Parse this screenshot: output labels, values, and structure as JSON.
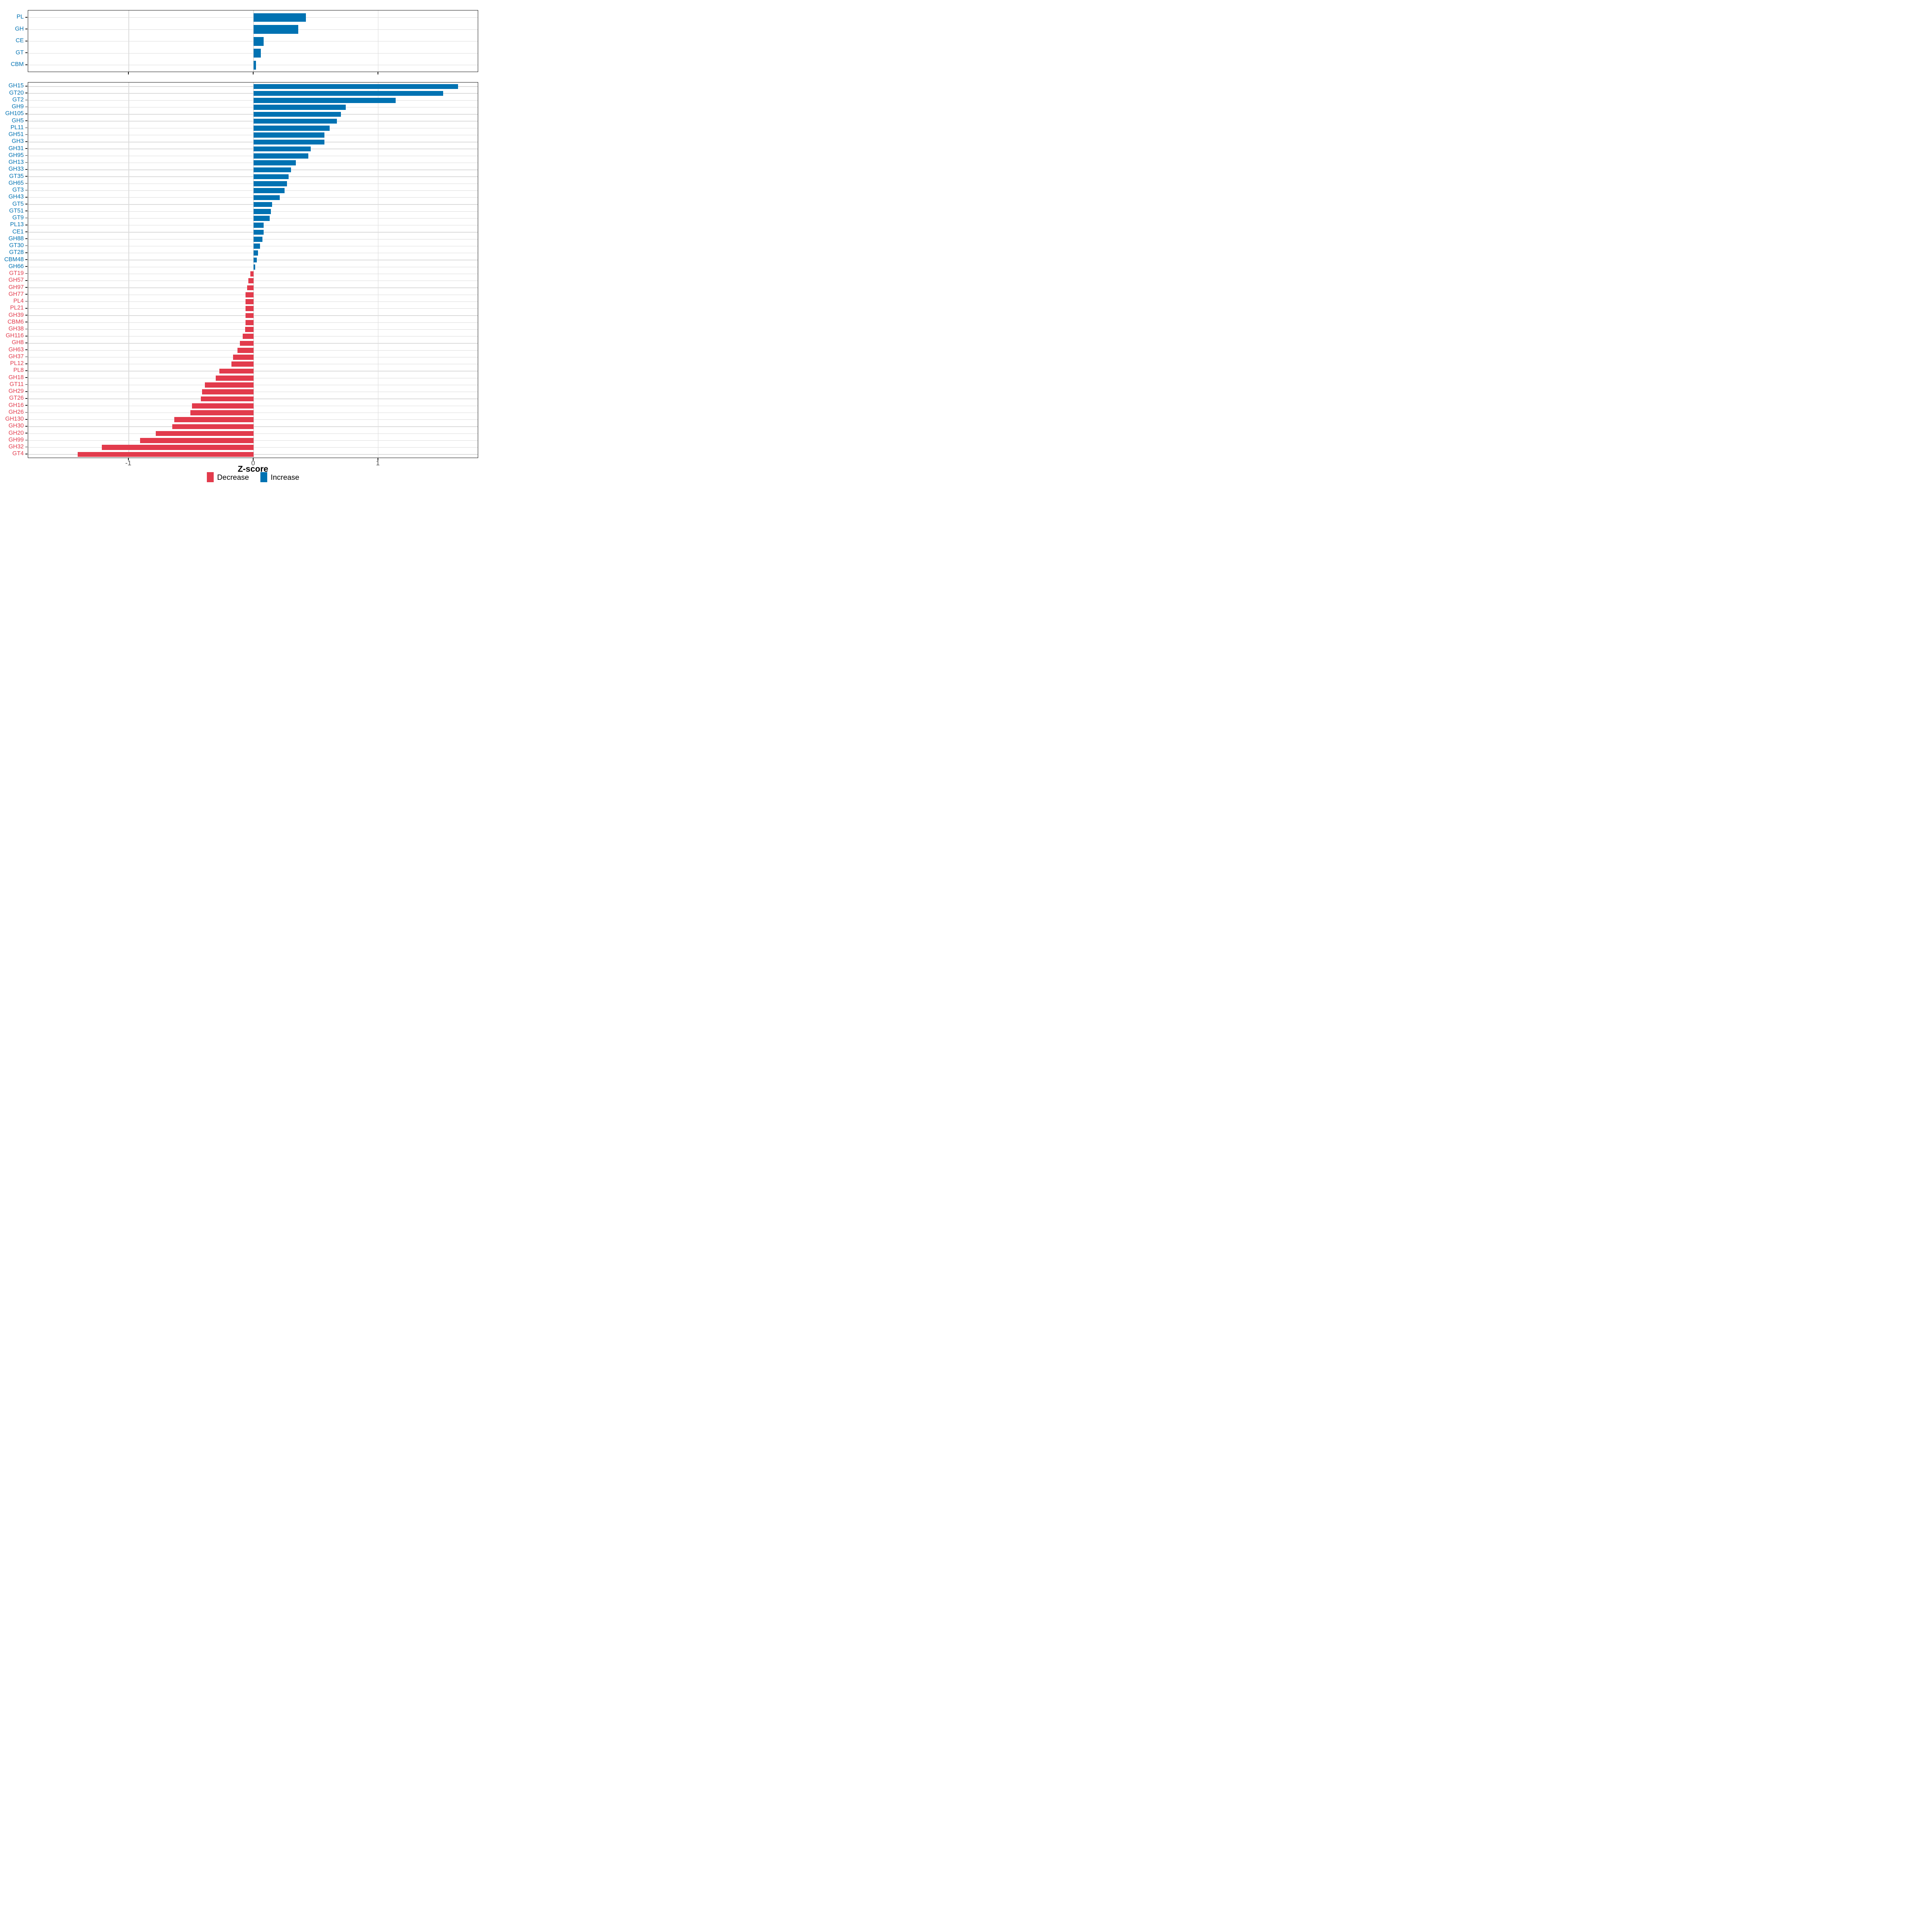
{
  "colors": {
    "increase": "#0072B2",
    "decrease": "#E23B4C",
    "grid": "#DCDCDC",
    "axis_text": "#4D4D4D",
    "panel_border": "#1A1A1A",
    "title_text": "#000000"
  },
  "x_axis": {
    "label": "Z-score",
    "ticks": [
      -1,
      0,
      1
    ],
    "tick_labels": [
      "-1",
      "0",
      "1"
    ]
  },
  "legend": {
    "items": [
      {
        "label": "Decrease",
        "color_key": "decrease"
      },
      {
        "label": "Increase",
        "color_key": "increase"
      }
    ]
  },
  "chart_data": [
    {
      "id": "classes",
      "type": "bar",
      "orientation": "horizontal",
      "title": "",
      "xlabel": "Z-score",
      "ylabel": "",
      "xlim": [
        -1.81,
        1.8
      ],
      "grid": "major-only",
      "legend_position": "bottom",
      "categories": [
        "PL",
        "GH",
        "CE",
        "GT",
        "CBM"
      ],
      "values": [
        0.42,
        0.36,
        0.08,
        0.06,
        0.02
      ]
    },
    {
      "id": "families",
      "type": "bar",
      "orientation": "horizontal",
      "title": "",
      "xlabel": "Z-score",
      "ylabel": "",
      "xlim": [
        -1.81,
        1.8
      ],
      "grid": "major-only",
      "legend_position": "bottom",
      "categories": [
        "GH15",
        "GT20",
        "GT2",
        "GH9",
        "GH105",
        "GH5",
        "PL11",
        "GH51",
        "GH3",
        "GH31",
        "GH95",
        "GH13",
        "GH33",
        "GT35",
        "GH65",
        "GT3",
        "GH43",
        "GT5",
        "GT51",
        "GT9",
        "PL13",
        "CE1",
        "GH88",
        "GT30",
        "GT28",
        "CBM48",
        "GH66",
        "GT19",
        "GH57",
        "GH97",
        "GH77",
        "PL4",
        "PL21",
        "GH39",
        "CBM6",
        "GH38",
        "GH116",
        "GH8",
        "GH63",
        "GH37",
        "PL12",
        "PL8",
        "GH18",
        "GT11",
        "GH29",
        "GT26",
        "GH16",
        "GH26",
        "GH130",
        "GH30",
        "GH20",
        "GH99",
        "GH32",
        "GT4"
      ],
      "values": [
        1.64,
        1.52,
        1.14,
        0.74,
        0.7,
        0.67,
        0.61,
        0.57,
        0.57,
        0.46,
        0.44,
        0.34,
        0.3,
        0.28,
        0.27,
        0.25,
        0.21,
        0.15,
        0.14,
        0.13,
        0.082,
        0.08,
        0.073,
        0.052,
        0.037,
        0.026,
        0.015,
        -0.024,
        -0.041,
        -0.05,
        -0.063,
        -0.064,
        -0.064,
        -0.065,
        -0.065,
        -0.066,
        -0.086,
        -0.11,
        -0.128,
        -0.163,
        -0.177,
        -0.273,
        -0.303,
        -0.389,
        -0.413,
        -0.421,
        -0.494,
        -0.507,
        -0.636,
        -0.652,
        -0.784,
        -0.908,
        -1.215,
        -1.41
      ]
    }
  ]
}
